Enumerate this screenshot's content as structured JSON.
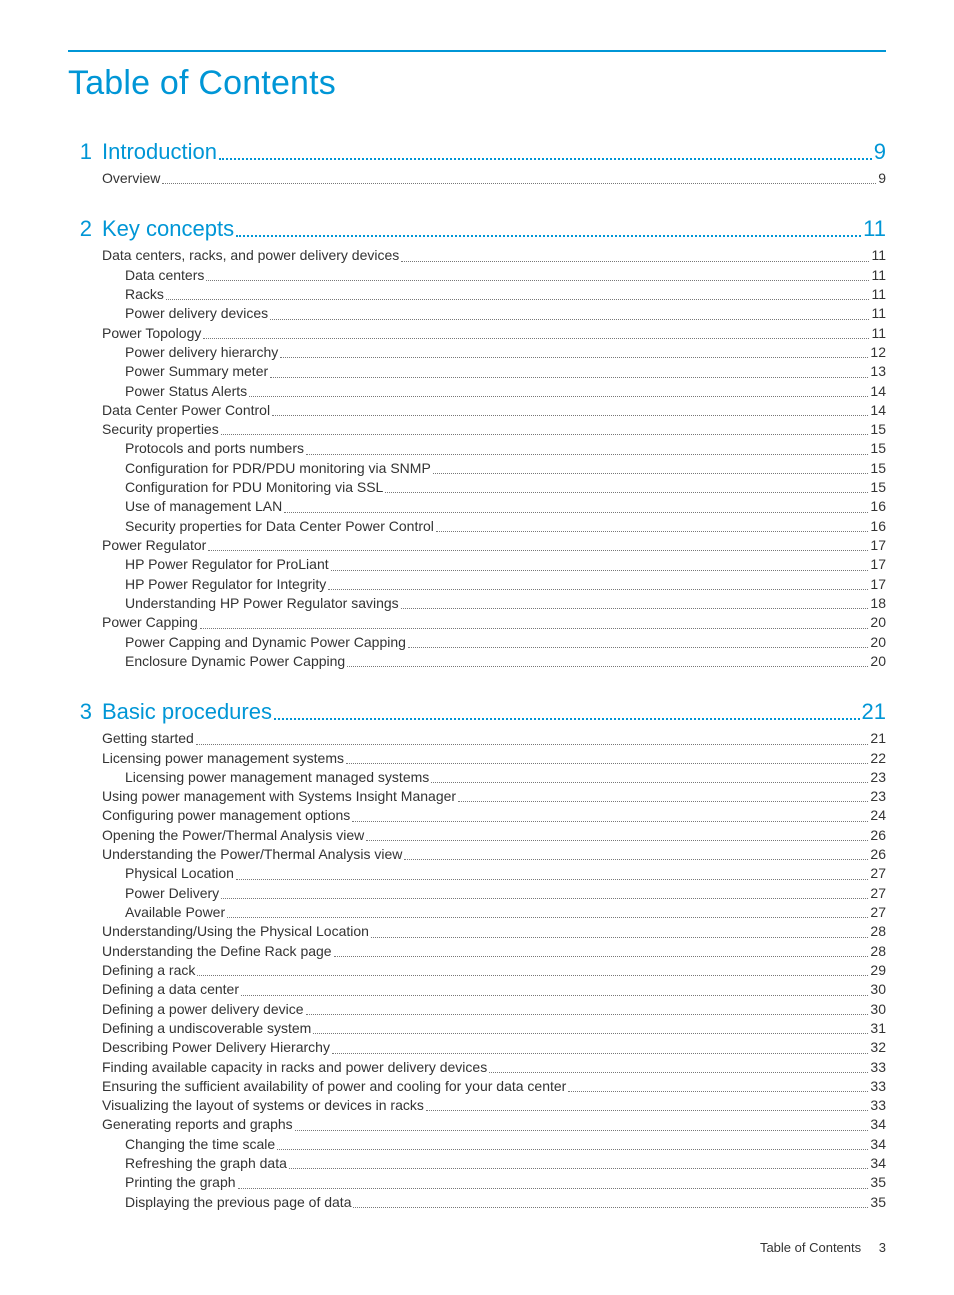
{
  "title": "Table of Contents",
  "sections": [
    {
      "num": "1",
      "label": "Introduction",
      "page": "9",
      "entries": [
        {
          "label": "Overview",
          "page": "9",
          "indent": 0
        }
      ]
    },
    {
      "num": "2",
      "label": "Key concepts",
      "page": "11",
      "entries": [
        {
          "label": "Data centers, racks, and power delivery devices",
          "page": "11",
          "indent": 0
        },
        {
          "label": "Data centers",
          "page": "11",
          "indent": 1
        },
        {
          "label": "Racks",
          "page": "11",
          "indent": 1
        },
        {
          "label": "Power delivery devices",
          "page": "11",
          "indent": 1
        },
        {
          "label": "Power Topology",
          "page": "11",
          "indent": 0
        },
        {
          "label": "Power delivery hierarchy",
          "page": "12",
          "indent": 1
        },
        {
          "label": "Power Summary meter",
          "page": "13",
          "indent": 1
        },
        {
          "label": "Power Status Alerts",
          "page": "14",
          "indent": 1
        },
        {
          "label": "Data Center Power Control",
          "page": "14",
          "indent": 0
        },
        {
          "label": "Security properties",
          "page": "15",
          "indent": 0
        },
        {
          "label": "Protocols and ports numbers",
          "page": "15",
          "indent": 1
        },
        {
          "label": "Configuration for PDR/PDU monitoring via SNMP ",
          "page": "15",
          "indent": 1
        },
        {
          "label": "Configuration for PDU Monitoring via SSL",
          "page": "15",
          "indent": 1
        },
        {
          "label": "Use of management LAN",
          "page": "16",
          "indent": 1
        },
        {
          "label": "Security properties for Data Center Power Control",
          "page": "16",
          "indent": 1
        },
        {
          "label": "Power Regulator",
          "page": "17",
          "indent": 0
        },
        {
          "label": "HP Power Regulator for ProLiant",
          "page": "17",
          "indent": 1
        },
        {
          "label": "HP Power Regulator for Integrity",
          "page": "17",
          "indent": 1
        },
        {
          "label": "Understanding HP Power Regulator savings",
          "page": "18",
          "indent": 1
        },
        {
          "label": "Power Capping",
          "page": "20",
          "indent": 0
        },
        {
          "label": "Power Capping and Dynamic Power Capping",
          "page": "20",
          "indent": 1
        },
        {
          "label": "Enclosure Dynamic Power Capping",
          "page": "20",
          "indent": 1
        }
      ]
    },
    {
      "num": "3",
      "label": "Basic procedures",
      "page": "21",
      "entries": [
        {
          "label": "Getting started",
          "page": "21",
          "indent": 0
        },
        {
          "label": "Licensing power management systems",
          "page": "22",
          "indent": 0
        },
        {
          "label": "Licensing power management managed systems",
          "page": "23",
          "indent": 1
        },
        {
          "label": "Using power management with Systems Insight Manager",
          "page": "23",
          "indent": 0
        },
        {
          "label": "Configuring power management options",
          "page": "24",
          "indent": 0
        },
        {
          "label": "Opening the Power/Thermal Analysis view",
          "page": "26",
          "indent": 0
        },
        {
          "label": "Understanding the Power/Thermal Analysis view",
          "page": "26",
          "indent": 0
        },
        {
          "label": "Physical  Location",
          "page": "27",
          "indent": 1
        },
        {
          "label": "Power  Delivery",
          "page": "27",
          "indent": 1
        },
        {
          "label": "Available Power",
          "page": "27",
          "indent": 1
        },
        {
          "label": "Understanding/Using the Physical Location",
          "page": "28",
          "indent": 0
        },
        {
          "label": "Understanding the Define Rack page",
          "page": "28",
          "indent": 0
        },
        {
          "label": "Defining a rack",
          "page": "29",
          "indent": 0
        },
        {
          "label": "Defining a data center",
          "page": "30",
          "indent": 0
        },
        {
          "label": "Defining a power delivery device",
          "page": "30",
          "indent": 0
        },
        {
          "label": "Defining a undiscoverable system",
          "page": "31",
          "indent": 0
        },
        {
          "label": "Describing Power Delivery Hierarchy",
          "page": "32",
          "indent": 0
        },
        {
          "label": "Finding available capacity in racks and power delivery devices",
          "page": "33",
          "indent": 0
        },
        {
          "label": "Ensuring the sufficient availability of power and cooling for your data center",
          "page": "33",
          "indent": 0
        },
        {
          "label": "Visualizing the layout of systems or devices in racks ",
          "page": "33",
          "indent": 0
        },
        {
          "label": "Generating reports and graphs",
          "page": "34",
          "indent": 0
        },
        {
          "label": "Changing the time scale",
          "page": "34",
          "indent": 1
        },
        {
          "label": "Refreshing the graph data",
          "page": "34",
          "indent": 1
        },
        {
          "label": "Printing the graph ",
          "page": "35",
          "indent": 1
        },
        {
          "label": "Displaying the previous page of data",
          "page": "35",
          "indent": 1
        }
      ]
    }
  ],
  "footer": {
    "label": "Table of Contents",
    "page": "3"
  }
}
